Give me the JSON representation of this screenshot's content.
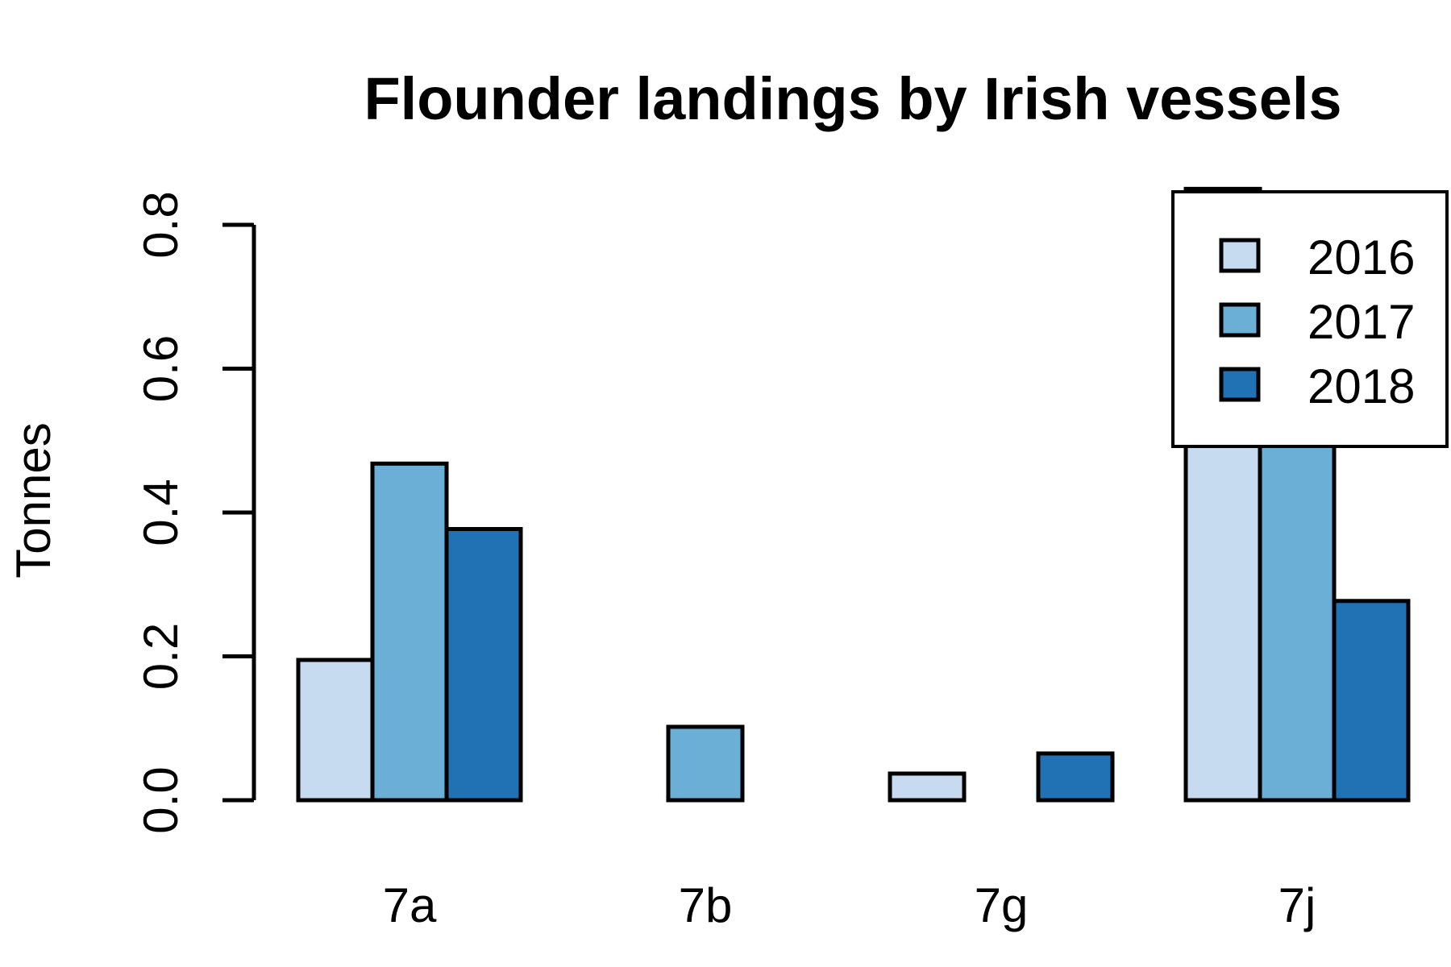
{
  "chart_data": {
    "type": "bar",
    "title": "Flounder landings by Irish vessels",
    "xlabel": "",
    "ylabel": "Tonnes",
    "categories": [
      "7a",
      "7b",
      "7g",
      "7j"
    ],
    "series": [
      {
        "name": "2016",
        "color": "#c6dbef",
        "values": [
          0.195,
          0.0,
          0.037,
          0.85
        ]
      },
      {
        "name": "2017",
        "color": "#6baed6",
        "values": [
          0.468,
          0.102,
          0.0,
          0.5
        ]
      },
      {
        "name": "2018",
        "color": "#2171b5",
        "values": [
          0.377,
          0.0,
          0.065,
          0.277
        ]
      }
    ],
    "ylim": [
      0,
      0.8
    ],
    "yticks": [
      "0.0",
      "0.2",
      "0.4",
      "0.6",
      "0.8"
    ],
    "legend_position": "top-right",
    "grid": false
  }
}
